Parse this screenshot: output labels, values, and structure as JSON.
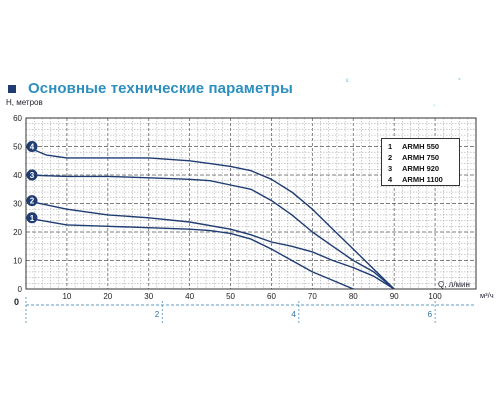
{
  "title": "Основные технические параметры",
  "chart_data": {
    "type": "line",
    "ylabel": "H, метров",
    "xlabel": "Q, л/мин",
    "x_secondary_unit": "м³/ч",
    "ylim": [
      0,
      60
    ],
    "xlim": [
      0,
      110
    ],
    "y_ticks": [
      "0",
      "10",
      "20",
      "30",
      "40",
      "50",
      "60"
    ],
    "y_zero_extra": "0",
    "x_ticks": [
      "10",
      "20",
      "30",
      "40",
      "50",
      "60",
      "70",
      "80",
      "90",
      "100"
    ],
    "x2_ticks": [
      {
        "label": "2",
        "at_lmin": 33.3
      },
      {
        "label": "4",
        "at_lmin": 66.7
      },
      {
        "label": "6",
        "at_lmin": 100
      }
    ],
    "series": [
      {
        "marker": "1",
        "name": "ARMH 550",
        "x": [
          0,
          10,
          20,
          30,
          40,
          45,
          50,
          55,
          60,
          65,
          70,
          75,
          80
        ],
        "y": [
          25,
          22.5,
          22,
          21.5,
          21,
          20.5,
          19.5,
          17.5,
          14,
          10,
          6,
          3,
          0
        ]
      },
      {
        "marker": "2",
        "name": "ARMH 750",
        "x": [
          0,
          10,
          20,
          30,
          40,
          50,
          55,
          60,
          65,
          70,
          75,
          80,
          85,
          90
        ],
        "y": [
          31,
          28,
          26,
          25,
          23.5,
          21,
          19,
          16.5,
          15,
          13,
          10,
          7.5,
          4.5,
          0
        ]
      },
      {
        "marker": "3",
        "name": "ARMH 920",
        "x": [
          0,
          10,
          20,
          30,
          40,
          45,
          50,
          55,
          60,
          65,
          70,
          75,
          80,
          85,
          90
        ],
        "y": [
          40,
          39.5,
          39.5,
          39,
          38.5,
          38,
          36.5,
          35,
          31,
          26,
          20,
          15,
          10,
          6,
          0
        ]
      },
      {
        "marker": "4",
        "name": "ARMH 1100",
        "x": [
          0,
          5,
          10,
          20,
          30,
          40,
          45,
          50,
          55,
          60,
          65,
          70,
          75,
          80,
          85,
          90
        ],
        "y": [
          50,
          47,
          46,
          46,
          46,
          45,
          44,
          43,
          41.5,
          38.5,
          34,
          28,
          21,
          14,
          7,
          0
        ]
      }
    ],
    "legend_position": "top-right",
    "grid": true,
    "line_color": "#1f3c73"
  }
}
